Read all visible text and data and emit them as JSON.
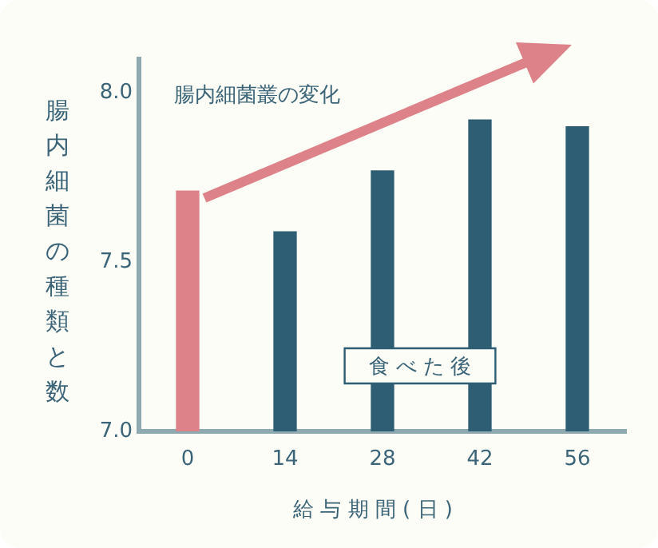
{
  "chart_data": {
    "type": "bar",
    "categories": [
      "0",
      "14",
      "28",
      "42",
      "56"
    ],
    "values": [
      7.71,
      7.59,
      7.77,
      7.92,
      7.9
    ],
    "colors": [
      "#de828a",
      "#2e5e73",
      "#2e5e73",
      "#2e5e73",
      "#2e5e73"
    ],
    "ylim": [
      7.0,
      8.1
    ],
    "yticks": [
      {
        "value": 7.0,
        "label": "7.0"
      },
      {
        "value": 7.5,
        "label": "7.5"
      },
      {
        "value": 8.0,
        "label": "8.0"
      }
    ],
    "xlabel": "給 与 期 間 ( 日 )",
    "ylabel": "腸内細菌の種類と数",
    "annotations": [
      "腸内細菌叢の変化",
      "食 べ た 後"
    ],
    "grid": false,
    "legend": false
  }
}
